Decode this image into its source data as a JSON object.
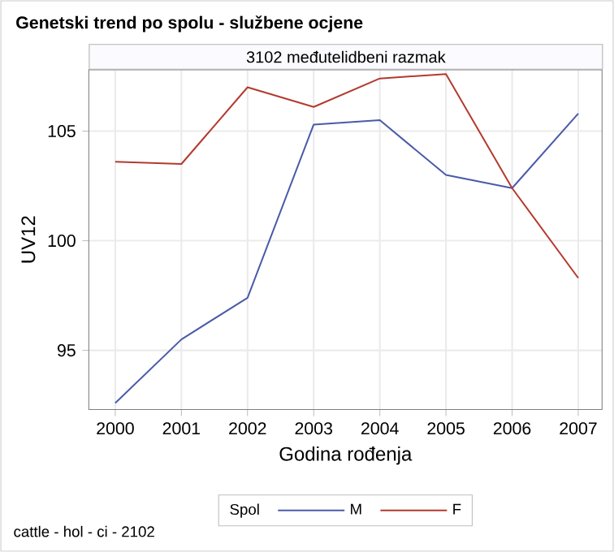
{
  "chart_data": {
    "type": "line",
    "title": "Genetski trend po spolu - službene ocjene",
    "subtitle": "3102 međutelidbeni razmak",
    "xlabel": "Godina rođenja",
    "ylabel": "UV12",
    "legend_title": "Spol",
    "x": [
      2000,
      2001,
      2002,
      2003,
      2004,
      2005,
      2006,
      2007
    ],
    "series": [
      {
        "name": "M",
        "color": "#4a5aa8",
        "values": [
          92.6,
          95.5,
          97.4,
          105.3,
          105.5,
          103.0,
          102.4,
          105.8
        ]
      },
      {
        "name": "F",
        "color": "#b33a2e",
        "values": [
          103.6,
          103.5,
          107.0,
          106.1,
          107.4,
          107.6,
          102.4,
          98.3
        ]
      }
    ],
    "xlim": [
      1999.6,
      2007.36
    ],
    "ylim": [
      92.3,
      107.8
    ],
    "xticks": [
      2000,
      2001,
      2002,
      2003,
      2004,
      2005,
      2006,
      2007
    ],
    "yticks": [
      95,
      100,
      105
    ],
    "grid": true,
    "legend": "bottom",
    "marker": "none",
    "line_style": "solid",
    "annotations": [
      "cattle - hol - ci - 2102"
    ]
  }
}
